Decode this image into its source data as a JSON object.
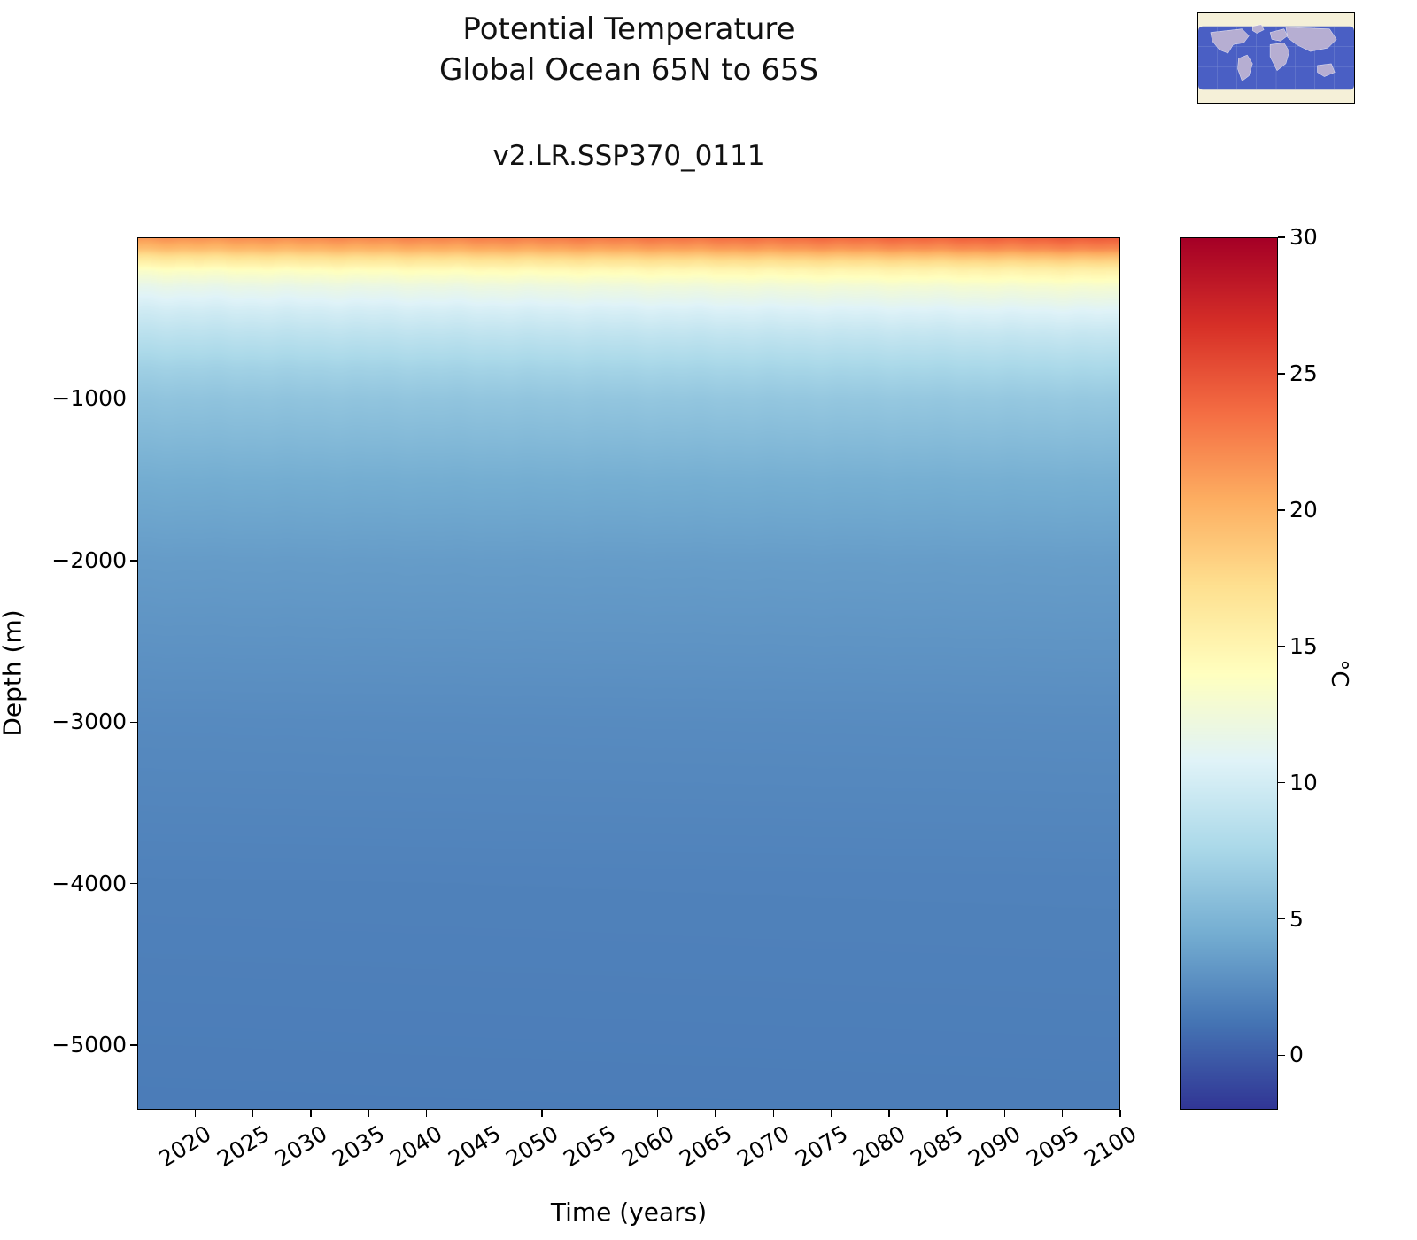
{
  "title": {
    "line1": "Potential Temperature",
    "line2": "Global Ocean 65N to 65S"
  },
  "subtitle": "v2.LR.SSP370_0111",
  "axes": {
    "xlabel": "Time (years)",
    "ylabel": "Depth (m)",
    "colorbar_label": "°C"
  },
  "inset_map": {
    "name": "world-map-65N-65S",
    "ocean_color": "#4a5fc4",
    "land_color": "#b6aed2",
    "band_color": "#f5f0d8"
  },
  "chart_data": {
    "type": "heatmap",
    "title": "Potential Temperature Global Ocean 65N to 65S",
    "subtitle": "v2.LR.SSP370_0111",
    "xlabel": "Time (years)",
    "ylabel": "Depth (m)",
    "colorbar_label": "°C",
    "x_range": [
      2015,
      2100
    ],
    "x_ticks": [
      2020,
      2025,
      2030,
      2035,
      2040,
      2045,
      2050,
      2055,
      2060,
      2065,
      2070,
      2075,
      2080,
      2085,
      2090,
      2095,
      2100
    ],
    "y_range": [
      0,
      -5400
    ],
    "y_ticks": [
      {
        "value": -1000,
        "label": "−1000"
      },
      {
        "value": -2000,
        "label": "−2000"
      },
      {
        "value": -3000,
        "label": "−3000"
      },
      {
        "value": -4000,
        "label": "−4000"
      },
      {
        "value": -5000,
        "label": "−5000"
      }
    ],
    "colorbar_ticks": [
      30,
      25,
      20,
      15,
      10,
      5,
      0
    ],
    "color_scale": {
      "vmin": -2,
      "vmax": 30,
      "colormap": "RdYlBu_r",
      "stops": [
        {
          "pos": 0.0,
          "color": "#313695"
        },
        {
          "pos": 0.1,
          "color": "#4575b4"
        },
        {
          "pos": 0.2,
          "color": "#74add1"
        },
        {
          "pos": 0.3,
          "color": "#abd9e9"
        },
        {
          "pos": 0.4,
          "color": "#e0f3f8"
        },
        {
          "pos": 0.5,
          "color": "#ffffbf"
        },
        {
          "pos": 0.6,
          "color": "#fee090"
        },
        {
          "pos": 0.7,
          "color": "#fdae61"
        },
        {
          "pos": 0.8,
          "color": "#f46d43"
        },
        {
          "pos": 0.9,
          "color": "#d73027"
        },
        {
          "pos": 1.0,
          "color": "#a50026"
        }
      ]
    },
    "depth_profile": [
      {
        "depth": 0,
        "t2015": 21.5,
        "t2100": 24.5
      },
      {
        "depth": 60,
        "t2015": 19.5,
        "t2100": 22.5
      },
      {
        "depth": 120,
        "t2015": 16.5,
        "t2100": 19.0
      },
      {
        "depth": 200,
        "t2015": 13.5,
        "t2100": 15.5
      },
      {
        "depth": 300,
        "t2015": 11.5,
        "t2100": 13.0
      },
      {
        "depth": 450,
        "t2015": 9.8,
        "t2100": 10.8
      },
      {
        "depth": 600,
        "t2015": 8.5,
        "t2100": 9.2
      },
      {
        "depth": 800,
        "t2015": 7.0,
        "t2100": 7.6
      },
      {
        "depth": 1000,
        "t2015": 6.0,
        "t2100": 6.4
      },
      {
        "depth": 1500,
        "t2015": 4.4,
        "t2100": 4.6
      },
      {
        "depth": 2000,
        "t2015": 3.4,
        "t2100": 3.5
      },
      {
        "depth": 3000,
        "t2015": 2.4,
        "t2100": 2.5
      },
      {
        "depth": 4000,
        "t2015": 1.9,
        "t2100": 1.95
      },
      {
        "depth": 5400,
        "t2015": 1.6,
        "t2100": 1.65
      }
    ]
  }
}
